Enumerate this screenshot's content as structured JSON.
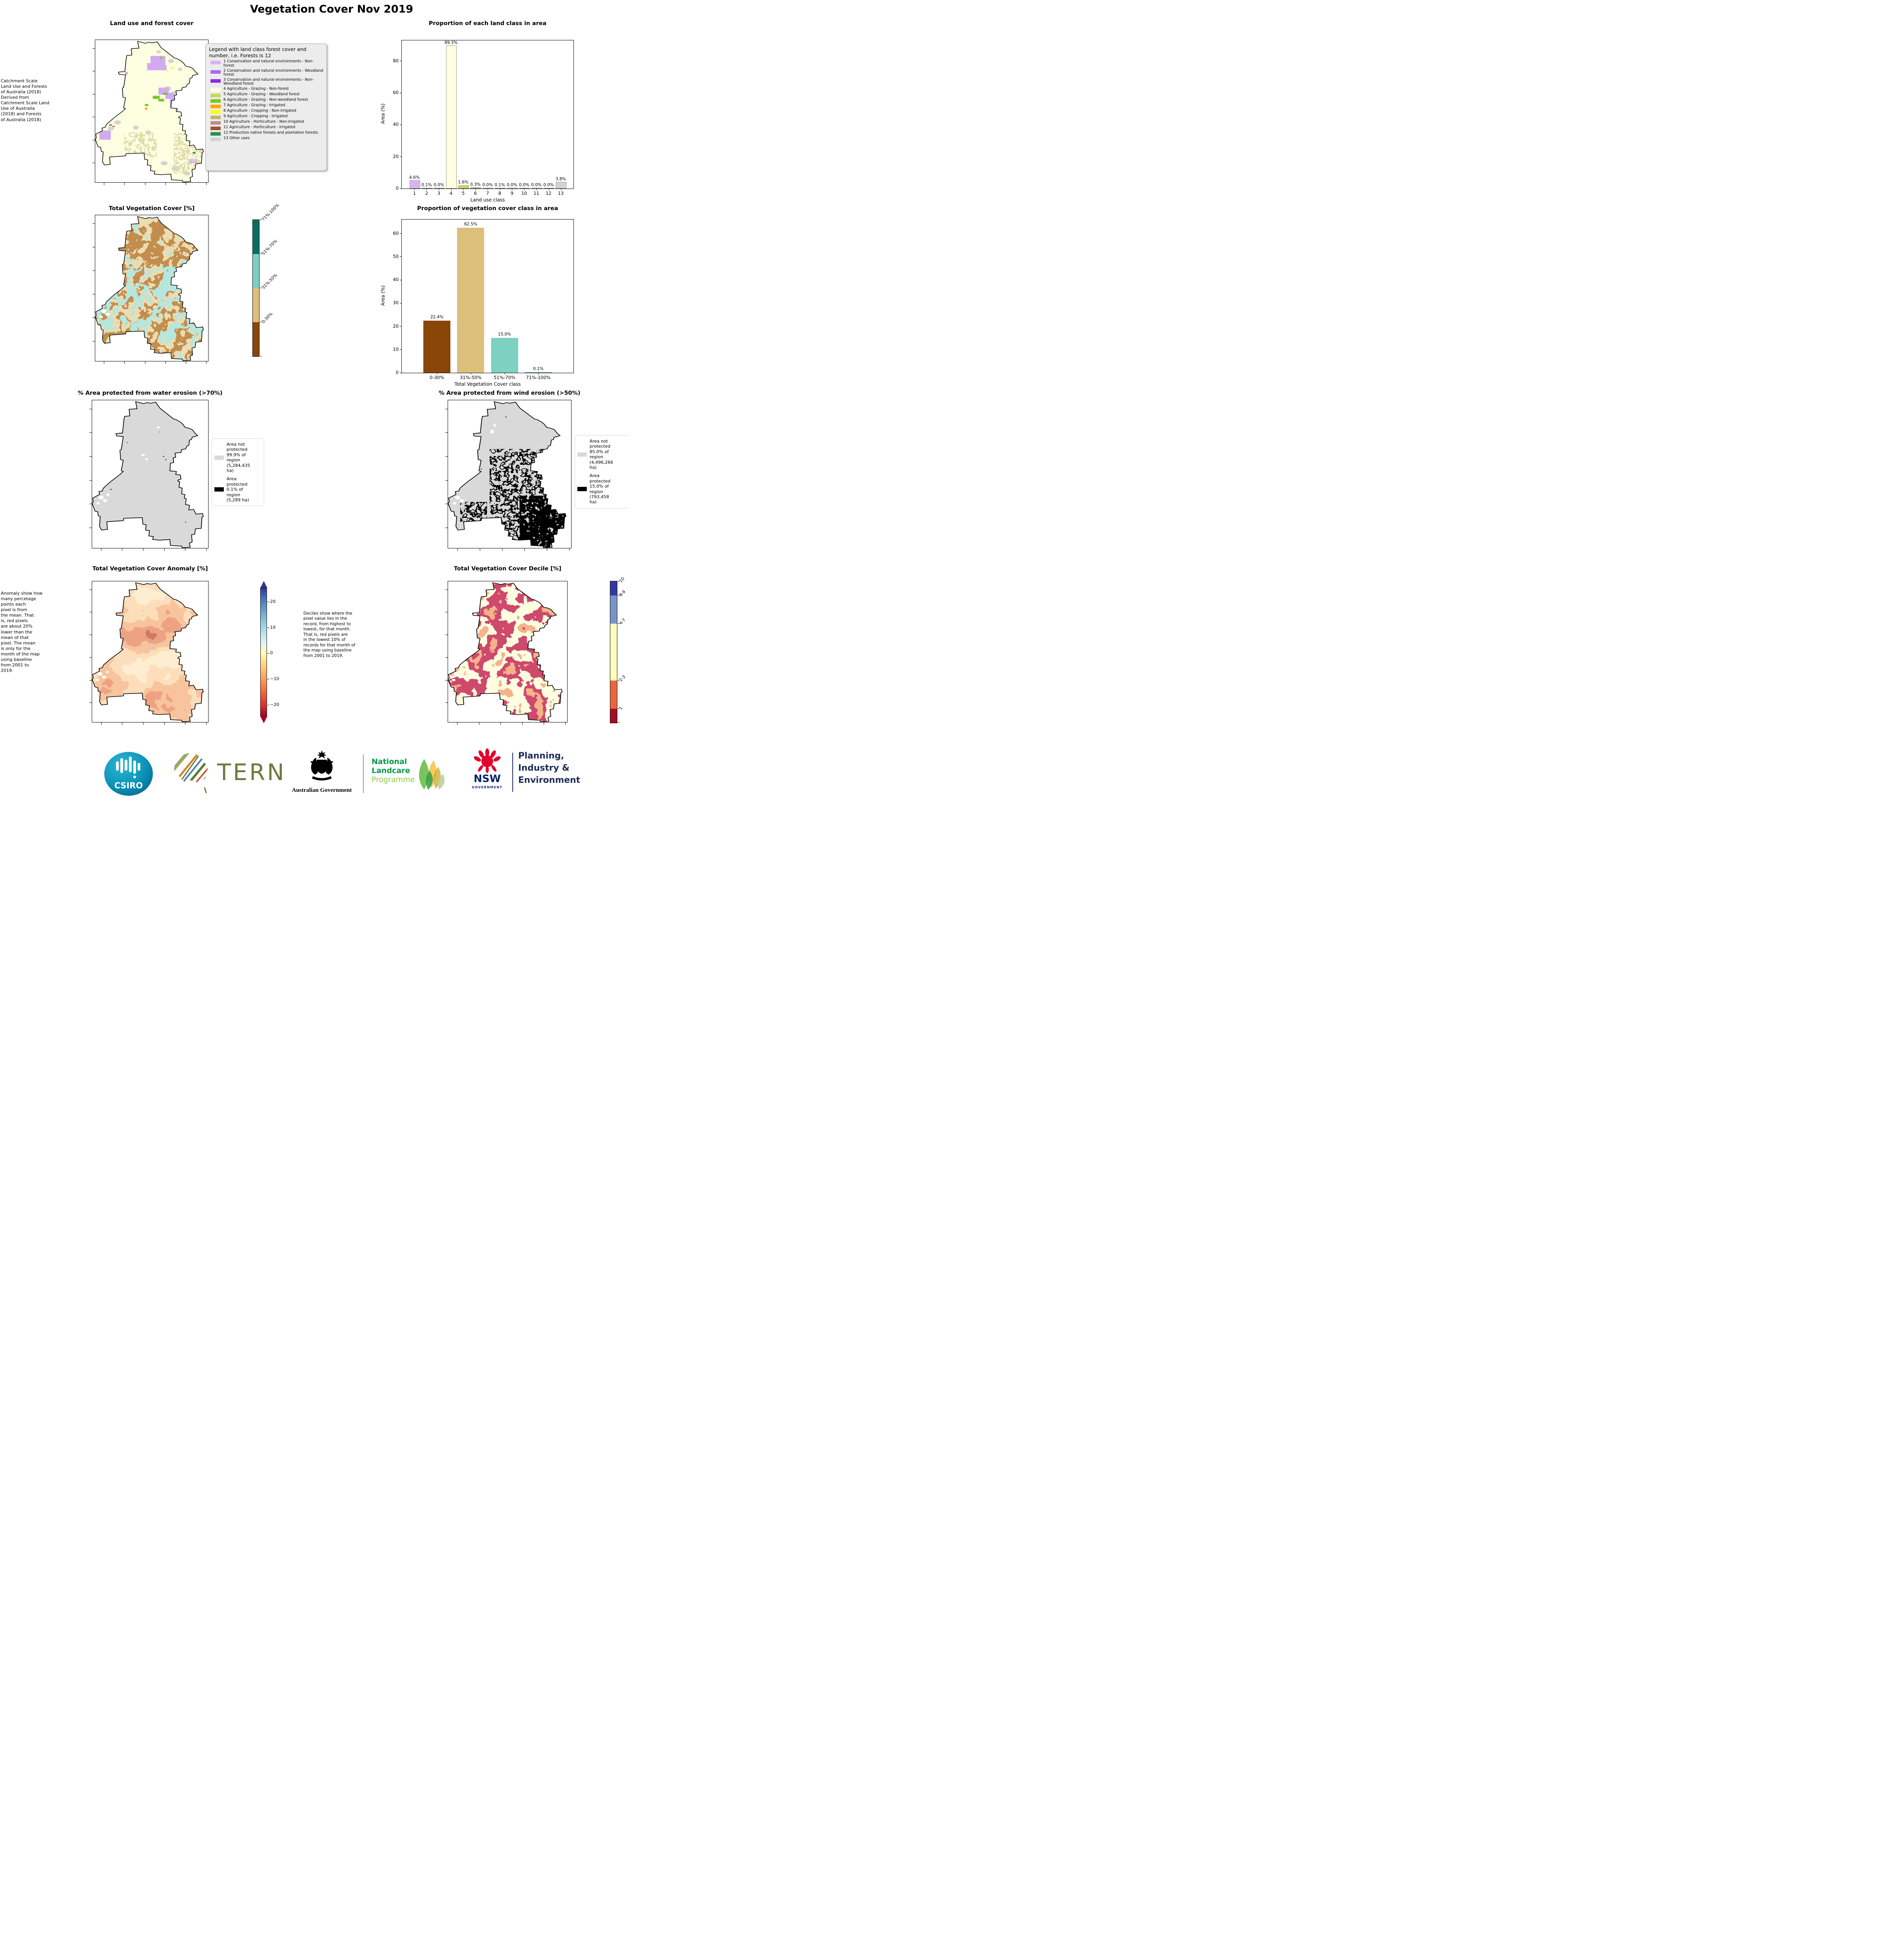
{
  "page_title": "Vegetation Cover Nov 2019",
  "land_use": {
    "title": "Land use and forest cover",
    "side_note": " Catchment Scale\nLand Use and Forests\nof Australia (2018)\nDerived from\nCatchment Scale Land\nUse of Australia\n(2018) and Forests\nof Australia (2018)",
    "legend_title": "Legend with land class forest cover and number, i.e. Forests is 12",
    "classes": [
      {
        "label": "1 Conservation and natural environments - Non-forest",
        "color": "#d9b3f0"
      },
      {
        "label": "2 Conservation and natural environments - Woodland forest",
        "color": "#b066ee"
      },
      {
        "label": "3 Conservation and natural environments - Non-Woodland forest",
        "color": "#8a2be2"
      },
      {
        "label": "4 Agriculture - Grazing - Non-forest",
        "color": "#fefee0"
      },
      {
        "label": "5 Agriculture - Grazing - Woodland forest",
        "color": "#c5d94e"
      },
      {
        "label": "6 Agriculture - Grazing - Non-woodland forest",
        "color": "#76c81e"
      },
      {
        "label": "7 Agriculture - Grazing - Irrigated",
        "color": "#ffa500"
      },
      {
        "label": "8 Agriculture - Cropping - Non-irrigated",
        "color": "#ffff00"
      },
      {
        "label": "9 Agriculture - Cropping - Irrigated",
        "color": "#bdb76b"
      },
      {
        "label": "10 Agriculture - Horticulture - Non-irrigated",
        "color": "#bc8f8f"
      },
      {
        "label": "11 Agriculture - Horticulture - Irrigated",
        "color": "#a0522d"
      },
      {
        "label": "12 Production native forests and plantation forests",
        "color": "#2e8b57"
      },
      {
        "label": "13 Other uses",
        "color": "#d3d3d3"
      }
    ]
  },
  "chart_data": [
    {
      "type": "bar",
      "title": "Proportion of each land class in area",
      "xlabel": "Land use class",
      "ylabel": "Area (%)",
      "categories": [
        "1",
        "2",
        "3",
        "4",
        "5",
        "6",
        "7",
        "8",
        "9",
        "10",
        "11",
        "12",
        "13"
      ],
      "values": [
        4.6,
        0.1,
        0.0,
        89.3,
        1.6,
        0.3,
        0.0,
        0.1,
        0.0,
        0.0,
        0.0,
        0.0,
        3.8
      ],
      "labels": [
        "4.6%",
        "0.1%",
        "0.0%",
        "89.3%",
        "1.6%",
        "0.3%",
        "0.0%",
        "0.1%",
        "0.0%",
        "0.0%",
        "0.0%",
        "0.0%",
        "3.8%"
      ],
      "colors": [
        "#d9b3f0",
        "#b066ee",
        "#8a2be2",
        "#fefee0",
        "#c5d94e",
        "#76c81e",
        "#ffa500",
        "#ffff00",
        "#bdb76b",
        "#bc8f8f",
        "#a0522d",
        "#2e8b57",
        "#d3d3d3"
      ],
      "ylim": [
        0,
        93
      ],
      "yticks": [
        0,
        20,
        40,
        60,
        80
      ],
      "grid": false,
      "legend": "none"
    },
    {
      "type": "bar",
      "title": "Proportion of vegetation cover class in area",
      "xlabel": "Total Vegetation Cover class",
      "ylabel": "Area (%)",
      "categories": [
        "0-30%",
        "31%-50%",
        "51%-70%",
        "71%-100%"
      ],
      "values": [
        22.4,
        62.5,
        15.0,
        0.1
      ],
      "labels": [
        "22.4%",
        "62.5%",
        "15.0%",
        "0.1%"
      ],
      "colors": [
        "#8a4509",
        "#dcbf7b",
        "#7ed0c0",
        "#0b6e62"
      ],
      "ylim": [
        0,
        66
      ],
      "yticks": [
        0,
        10,
        20,
        30,
        40,
        50,
        60
      ],
      "grid": false,
      "legend": "none"
    }
  ],
  "veg_cover": {
    "title": "Total Vegetation Cover [%]",
    "colorbar": [
      {
        "label": "0-30%",
        "color": "#8a4509"
      },
      {
        "label": "31%-50%",
        "color": "#dcbf7b"
      },
      {
        "label": "51%-70%",
        "color": "#7ed0c0"
      },
      {
        "label": "71%-100%",
        "color": "#0b6e62"
      }
    ]
  },
  "water": {
    "title": "% Area protected from water erosion (>70%)",
    "legend": [
      {
        "text": "Area not\nprotected\n99.9% of\nregion\n(5,284,435\nha)",
        "color": "#d9d9d9"
      },
      {
        "text": "Area\nprotected\n0.1% of\nregion\n(5,289 ha)",
        "color": "#000000"
      }
    ]
  },
  "wind": {
    "title": "% Area protected from wind erosion (>50%)",
    "legend": [
      {
        "text": "Area not\nprotected\n85.0% of\nregion\n(4,496,266\nha)",
        "color": "#d9d9d9"
      },
      {
        "text": "Area\nprotected\n15.0% of\nregion\n(793,458\nha)",
        "color": "#000000"
      }
    ]
  },
  "anomaly": {
    "title": "Total Vegetation Cover Anomaly [%]",
    "note": "Anomaly show how\nmany percetage\npoints each\npixel is from\nthe mean. That\nis, red pixels\nare about 20%\nlower than the\nmean of that\npixel. The mean\nis only for the\nmonth of the map\nusing baseline\nfrom 2001 to\n2019.",
    "cbar_ticks": [
      "20",
      "10",
      "0",
      "−10",
      "−20"
    ]
  },
  "decile": {
    "title": "Total Vegetation Cover Decile [%]",
    "note": "Deciles show where the\npixel value lies in the\nrecord, from highest to\nlowest, for that month.\nThat is, red pixels are\nin the lowest 10% of\nrecords for that month of\nthe map using baseline\nfrom 2001 to 2019.",
    "colorbar": [
      {
        "label": "1",
        "color": "#9e1128",
        "frac": 0.1
      },
      {
        "label": "2-3",
        "color": "#e4683f",
        "frac": 0.2
      },
      {
        "label": "4-7",
        "color": "#fdfdc0",
        "frac": 0.4
      },
      {
        "label": "8-9",
        "color": "#7b93c4",
        "frac": 0.2
      },
      {
        "label": "10",
        "color": "#33399b",
        "frac": 0.1
      }
    ]
  },
  "footer": {
    "csiro": "CSIRO",
    "tern": "TERN",
    "aus_gov": "Australian Government",
    "landcare": [
      "National",
      "Landcare",
      "Programme"
    ],
    "nsw": [
      "NSW",
      "GOVERNMENT"
    ],
    "pie": [
      "Planning,",
      "Industry &",
      "Environment"
    ]
  }
}
